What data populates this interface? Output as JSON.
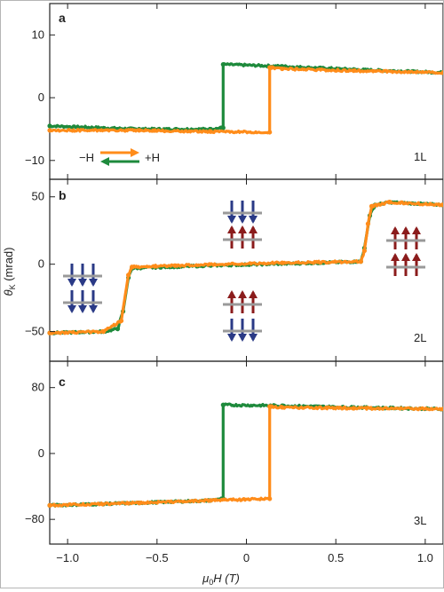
{
  "colors": {
    "sweep_down": "#ff8c1a",
    "sweep_up": "#1e8a3c",
    "spin_down_arrow": "#2a3a86",
    "spin_up_arrow": "#8b1c1c",
    "layer_bar": "#999999"
  },
  "legend": {
    "minus_h": "−H",
    "plus_h": "+H"
  },
  "chart_data": [
    {
      "type": "line",
      "panel": "a",
      "layer_label": "1L",
      "xlim": [
        -1.1,
        1.1
      ],
      "ylim": [
        -13,
        15
      ],
      "yticks": [
        -10,
        0,
        10
      ],
      "series": [
        {
          "direction": "down sweep (orange)",
          "x": [
            1.1,
            0.6,
            0.2,
            0.14,
            0.13,
            0.13,
            -0.2,
            -0.6,
            -1.1
          ],
          "y": [
            4.0,
            4.3,
            4.6,
            4.8,
            4.8,
            -5.5,
            -5.4,
            -5.2,
            -5.2
          ]
        },
        {
          "direction": "up sweep (green)",
          "x": [
            -1.1,
            -0.6,
            -0.2,
            -0.14,
            -0.13,
            -0.13,
            0.2,
            0.6,
            1.1
          ],
          "y": [
            -4.5,
            -5.0,
            -5.0,
            -4.8,
            -4.8,
            5.3,
            5.0,
            4.5,
            4.0
          ]
        }
      ]
    },
    {
      "type": "line",
      "panel": "b",
      "layer_label": "2L",
      "xlim": [
        -1.1,
        1.1
      ],
      "ylim": [
        -72,
        63
      ],
      "yticks": [
        -50,
        0,
        50
      ],
      "series": [
        {
          "direction": "down sweep (orange)",
          "x": [
            1.1,
            0.8,
            0.7,
            0.68,
            0.66,
            0.64,
            0.2,
            -0.4,
            -0.64,
            -0.66,
            -0.7,
            -0.8,
            -1.1
          ],
          "y": [
            44,
            46,
            43,
            30,
            10,
            2,
            1,
            -1,
            -2,
            -8,
            -42,
            -50,
            -51
          ]
        },
        {
          "direction": "up sweep (green)",
          "x": [
            -1.1,
            -0.8,
            -0.72,
            -0.69,
            -0.66,
            -0.64,
            -0.2,
            0.4,
            0.64,
            0.66,
            0.69,
            0.72,
            0.8,
            1.1
          ],
          "y": [
            -51,
            -50,
            -48,
            -35,
            -10,
            -3,
            -1,
            1,
            2,
            12,
            36,
            44,
            46,
            44
          ]
        }
      ]
    },
    {
      "type": "line",
      "panel": "c",
      "layer_label": "3L",
      "xlim": [
        -1.1,
        1.1
      ],
      "ylim": [
        -110,
        112
      ],
      "yticks": [
        -80,
        0,
        80
      ],
      "series": [
        {
          "direction": "down sweep (orange)",
          "x": [
            1.1,
            0.6,
            0.2,
            0.14,
            0.13,
            0.13,
            -0.2,
            -0.6,
            -1.1
          ],
          "y": [
            54,
            55,
            56,
            57,
            57,
            -55,
            -57,
            -60,
            -63
          ]
        },
        {
          "direction": "up sweep (green)",
          "x": [
            -1.1,
            -0.6,
            -0.2,
            -0.14,
            -0.13,
            -0.13,
            0.2,
            0.6,
            1.1
          ],
          "y": [
            -63,
            -60,
            -57,
            -55,
            -55,
            59,
            58,
            56,
            54
          ]
        }
      ]
    }
  ],
  "x_axis": {
    "label_mu": "μ",
    "label_sub": "0",
    "label_rest": "H (T)",
    "ticks": [
      -1.0,
      -0.5,
      0.0,
      0.5,
      1.0
    ],
    "tick_labels": [
      "−1.0",
      "−0.5",
      "0",
      "0.5",
      "1.0"
    ]
  },
  "y_axis": {
    "label_theta": "θ",
    "label_sub": "K",
    "label_rest": " (mrad)"
  }
}
